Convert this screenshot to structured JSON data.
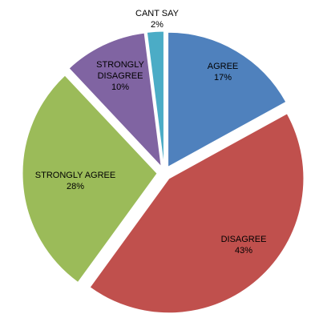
{
  "chart_data": {
    "type": "pie",
    "exploded": true,
    "slices": [
      {
        "label": "AGREE",
        "value": 17,
        "value_label": "17%",
        "color": "#4f81bd"
      },
      {
        "label": "DISAGREE",
        "value": 43,
        "value_label": "43%",
        "color": "#c0504d"
      },
      {
        "label": "STRONGLY AGREE",
        "value": 28,
        "value_label": "28%",
        "color": "#9bbb59"
      },
      {
        "label": "STRONGLY DISAGREE",
        "value": 10,
        "value_label": "10%",
        "color": "#8064a2"
      },
      {
        "label": "CANT SAY",
        "value": 2,
        "value_label": "2%",
        "color": "#4bacc6"
      }
    ]
  }
}
